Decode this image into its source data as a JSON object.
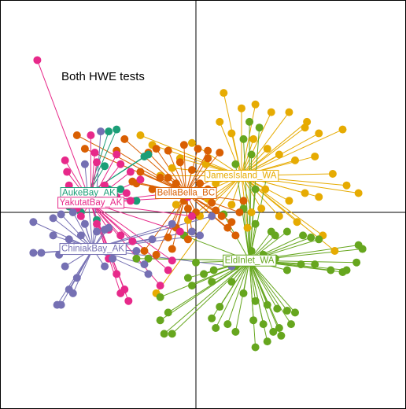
{
  "chart_data": {
    "type": "scatter",
    "title": "Both HWE tests",
    "xlim": [
      -1,
      1
    ],
    "ylim": [
      -1,
      1
    ],
    "grid": false,
    "series": [
      {
        "name": "JamesIsland_WA",
        "color": "#E6AB02",
        "centroid": [
          0.23,
          0.19
        ],
        "points": [
          [
            0.14,
            0.62
          ],
          [
            0.23,
            0.54
          ],
          [
            0.3,
            0.56
          ],
          [
            0.38,
            0.52
          ],
          [
            0.47,
            0.52
          ],
          [
            0.55,
            0.44
          ],
          [
            0.56,
            0.47
          ],
          [
            0.62,
            0.41
          ],
          [
            0.74,
            0.43
          ],
          [
            0.12,
            0.47
          ],
          [
            0.18,
            0.41
          ],
          [
            0.29,
            0.38
          ],
          [
            0.36,
            0.33
          ],
          [
            0.42,
            0.3
          ],
          [
            0.5,
            0.27
          ],
          [
            0.6,
            0.29
          ],
          [
            0.69,
            0.2
          ],
          [
            0.76,
            0.14
          ],
          [
            0.82,
            0.1
          ],
          [
            0.55,
            0.1
          ],
          [
            0.62,
            0.08
          ],
          [
            0.47,
            0.06
          ],
          [
            0.35,
            0.12
          ],
          [
            0.33,
            0.02
          ],
          [
            0.42,
            -0.02
          ],
          [
            0.51,
            -0.05
          ],
          [
            0.64,
            -0.12
          ],
          [
            0.7,
            -0.2
          ],
          [
            0.28,
            0.0
          ],
          [
            0.26,
            -0.08
          ],
          [
            -0.12,
            0.23
          ],
          [
            -0.18,
            0.19
          ],
          [
            -0.08,
            0.28
          ],
          [
            0.05,
            0.25
          ],
          [
            -0.02,
            0.36
          ],
          [
            -0.22,
            0.35
          ],
          [
            -0.28,
            0.4
          ],
          [
            0.1,
            0.15
          ],
          [
            0.06,
            0.07
          ],
          [
            -0.1,
            0.04
          ],
          [
            0.18,
            0.04
          ],
          [
            0.02,
            -0.02
          ],
          [
            -0.04,
            -0.04
          ],
          [
            -0.2,
            -0.42
          ]
        ]
      },
      {
        "name": "EldInlet_WA",
        "color": "#66A61E",
        "centroid": [
          0.27,
          -0.25
        ],
        "points": [
          [
            0.27,
            0.47
          ],
          [
            0.32,
            0.44
          ],
          [
            0.24,
            0.38
          ],
          [
            0.28,
            0.3
          ],
          [
            0.2,
            0.25
          ],
          [
            0.36,
            0.2
          ],
          [
            0.3,
            0.12
          ],
          [
            0.24,
            0.02
          ],
          [
            0.14,
            -0.01
          ],
          [
            0.3,
            -0.06
          ],
          [
            0.38,
            -0.1
          ],
          [
            0.4,
            -0.12
          ],
          [
            0.46,
            -0.1
          ],
          [
            0.54,
            -0.12
          ],
          [
            0.58,
            -0.13
          ],
          [
            0.62,
            -0.14
          ],
          [
            0.82,
            -0.17
          ],
          [
            0.84,
            -0.19
          ],
          [
            0.81,
            -0.26
          ],
          [
            0.76,
            -0.3
          ],
          [
            0.53,
            -0.27
          ],
          [
            0.6,
            -0.27
          ],
          [
            0.68,
            -0.3
          ],
          [
            0.74,
            -0.31
          ],
          [
            0.28,
            -0.2
          ],
          [
            0.34,
            -0.22
          ],
          [
            0.4,
            -0.24
          ],
          [
            0.46,
            -0.3
          ],
          [
            0.2,
            -0.28
          ],
          [
            0.18,
            -0.36
          ],
          [
            0.24,
            -0.42
          ],
          [
            0.3,
            -0.46
          ],
          [
            0.36,
            -0.48
          ],
          [
            0.41,
            -0.5
          ],
          [
            0.46,
            -0.51
          ],
          [
            0.5,
            -0.52
          ],
          [
            0.29,
            -0.56
          ],
          [
            0.34,
            -0.58
          ],
          [
            0.39,
            -0.62
          ],
          [
            0.42,
            -0.6
          ],
          [
            0.48,
            -0.58
          ],
          [
            0.3,
            -0.7
          ],
          [
            0.36,
            -0.67
          ],
          [
            0.43,
            -0.64
          ],
          [
            0.12,
            -0.49
          ],
          [
            0.08,
            -0.55
          ],
          [
            0.1,
            -0.6
          ],
          [
            0.16,
            -0.58
          ],
          [
            0.2,
            -0.62
          ],
          [
            -0.02,
            -0.38
          ],
          [
            -0.04,
            -0.34
          ],
          [
            -0.18,
            -0.44
          ],
          [
            -0.14,
            -0.52
          ],
          [
            -0.12,
            -0.63
          ],
          [
            -0.16,
            -0.63
          ],
          [
            -0.18,
            -0.56
          ],
          [
            -0.3,
            -0.24
          ],
          [
            -0.24,
            -0.24
          ],
          [
            0.09,
            -0.3
          ],
          [
            0.04,
            -0.32
          ],
          [
            0.0,
            -0.26
          ],
          [
            0.08,
            -0.36
          ],
          [
            -0.06,
            -0.12
          ]
        ]
      },
      {
        "name": "BellaBella_BC",
        "color": "#D95F02",
        "centroid": [
          -0.05,
          0.1
        ],
        "points": [
          [
            -0.6,
            0.4
          ],
          [
            -0.56,
            0.33
          ],
          [
            -0.4,
            0.32
          ],
          [
            -0.36,
            0.38
          ],
          [
            -0.24,
            0.31
          ],
          [
            -0.2,
            0.33
          ],
          [
            -0.14,
            0.32
          ],
          [
            -0.06,
            0.35
          ],
          [
            0.01,
            0.33
          ],
          [
            0.06,
            0.32
          ],
          [
            0.06,
            0.28
          ],
          [
            0.12,
            0.31
          ],
          [
            0.14,
            0.2
          ],
          [
            -0.18,
            0.18
          ],
          [
            -0.28,
            0.21
          ],
          [
            -0.32,
            0.16
          ],
          [
            -0.3,
            0.15
          ],
          [
            -0.22,
            0.12
          ],
          [
            -0.14,
            0.18
          ],
          [
            -0.1,
            0.15
          ],
          [
            0.02,
            0.15
          ],
          [
            0.06,
            0.12
          ],
          [
            0.08,
            0.05
          ],
          [
            0.1,
            0.01
          ],
          [
            0.13,
            -0.02
          ],
          [
            0.18,
            -0.05
          ],
          [
            0.24,
            0.06
          ],
          [
            0.22,
            0.0
          ],
          [
            0.16,
            -0.08
          ],
          [
            0.2,
            -0.12
          ],
          [
            -0.04,
            0.02
          ],
          [
            -0.06,
            0.06
          ],
          [
            -0.1,
            -0.08
          ],
          [
            -0.02,
            -0.1
          ],
          [
            -0.04,
            -0.14
          ],
          [
            -0.14,
            -0.13
          ],
          [
            -0.12,
            -0.19
          ],
          [
            -0.2,
            -0.22
          ],
          [
            -0.26,
            -0.2
          ],
          [
            -0.02,
            0.22
          ],
          [
            -0.08,
            0.26
          ],
          [
            0.0,
            0.0
          ]
        ]
      },
      {
        "name": "AukeBay_AK",
        "color": "#1B9E77",
        "centroid": [
          -0.54,
          0.1
        ],
        "points": [
          [
            -0.44,
            0.42
          ],
          [
            -0.4,
            0.43
          ],
          [
            -0.26,
            0.29
          ],
          [
            -0.24,
            0.3
          ],
          [
            -0.46,
            0.24
          ],
          [
            -0.44,
            0.12
          ],
          [
            -0.56,
            0.07
          ],
          [
            -0.6,
            0.05
          ],
          [
            -0.64,
            0.03
          ],
          [
            -0.58,
            0.0
          ],
          [
            -0.4,
            0.08
          ],
          [
            -0.38,
            0.12
          ],
          [
            -0.3,
            0.06
          ],
          [
            -0.5,
            -0.04
          ]
        ]
      },
      {
        "name": "YakutatBay_AK",
        "color": "#E7298A",
        "centroid": [
          -0.53,
          0.05
        ],
        "points": [
          [
            -0.8,
            0.79
          ],
          [
            -0.66,
            0.27
          ],
          [
            -0.65,
            0.21
          ],
          [
            -0.64,
            0.14
          ],
          [
            -0.53,
            0.4
          ],
          [
            -0.51,
            0.31
          ],
          [
            -0.5,
            0.26
          ],
          [
            -0.4,
            0.3
          ],
          [
            -0.38,
            0.25
          ],
          [
            -0.33,
            0.21
          ],
          [
            -0.28,
            0.17
          ],
          [
            -0.46,
            0.14
          ],
          [
            -0.44,
            0.1
          ],
          [
            -0.4,
            0.08
          ],
          [
            -0.35,
            0.1
          ],
          [
            -0.33,
            0.06
          ],
          [
            -0.6,
            0.02
          ],
          [
            -0.58,
            -0.02
          ],
          [
            -0.5,
            -0.06
          ],
          [
            -0.44,
            -0.09
          ],
          [
            -0.38,
            -0.12
          ],
          [
            -0.32,
            -0.15
          ],
          [
            -0.44,
            -0.24
          ],
          [
            -0.4,
            -0.32
          ],
          [
            -0.36,
            -0.4
          ],
          [
            -0.38,
            -0.42
          ],
          [
            -0.34,
            -0.46
          ],
          [
            -0.18,
            -0.38
          ],
          [
            -0.14,
            -0.3
          ],
          [
            -0.12,
            -0.25
          ],
          [
            -0.08,
            -0.1
          ],
          [
            -0.02,
            -0.02
          ],
          [
            -0.04,
            0.08
          ],
          [
            -0.12,
            0.1
          ]
        ]
      },
      {
        "name": "ChiniakBay_AK",
        "color": "#7570B3",
        "centroid": [
          -0.52,
          -0.19
        ],
        "points": [
          [
            -0.6,
            0.06
          ],
          [
            -0.62,
            0.0
          ],
          [
            -0.68,
            -0.01
          ],
          [
            -0.72,
            -0.03
          ],
          [
            -0.56,
            -0.06
          ],
          [
            -0.5,
            -0.1
          ],
          [
            -0.46,
            -0.09
          ],
          [
            -0.44,
            -0.08
          ],
          [
            -0.58,
            -0.12
          ],
          [
            -0.64,
            -0.14
          ],
          [
            -0.72,
            -0.12
          ],
          [
            -0.78,
            -0.21
          ],
          [
            -0.82,
            -0.21
          ],
          [
            -0.82,
            -0.05
          ],
          [
            -0.69,
            -0.22
          ],
          [
            -0.66,
            -0.28
          ],
          [
            -0.4,
            -0.18
          ],
          [
            -0.38,
            -0.2
          ],
          [
            -0.26,
            -0.27
          ],
          [
            -0.24,
            -0.32
          ],
          [
            -0.6,
            -0.34
          ],
          [
            -0.64,
            -0.4
          ],
          [
            -0.7,
            -0.48
          ],
          [
            -0.68,
            -0.48
          ],
          [
            -0.62,
            -0.42
          ],
          [
            -0.46,
            -0.28
          ],
          [
            -0.42,
            -0.24
          ],
          [
            -0.3,
            -0.2
          ],
          [
            -0.22,
            -0.14
          ],
          [
            -0.12,
            -0.06
          ],
          [
            -0.02,
            -0.1
          ],
          [
            0.02,
            -0.12
          ],
          [
            0.08,
            -0.02
          ],
          [
            0.18,
            -0.28
          ],
          [
            -0.56,
            0.25
          ],
          [
            -0.48,
            0.42
          ]
        ]
      }
    ],
    "labels": [
      {
        "series": "AukeBay_AK",
        "text": "AukeBay_AK",
        "fill": "#ffffff",
        "color": "#1B9E77"
      },
      {
        "series": "BellaBella_BC",
        "text": "BellaBella_BC",
        "fill": "#ffffff",
        "color": "#D95F02"
      },
      {
        "series": "YakutatBay_AK",
        "text": "YakutatBay_AK",
        "fill": "#ffffff",
        "color": "#E7298A"
      },
      {
        "series": "ChiniakBay_AK",
        "text": "ChiniakBay_AK",
        "fill": "#ffffff",
        "color": "#7570B3"
      },
      {
        "series": "EldInlet_WA",
        "text": "EldInlet_WA",
        "fill": "#ffffff",
        "color": "#66A61E"
      },
      {
        "series": "JamesIsland_WA",
        "text": "JamesIsland_WA",
        "fill": "#ffffff",
        "color": "#E6AB02"
      }
    ]
  }
}
